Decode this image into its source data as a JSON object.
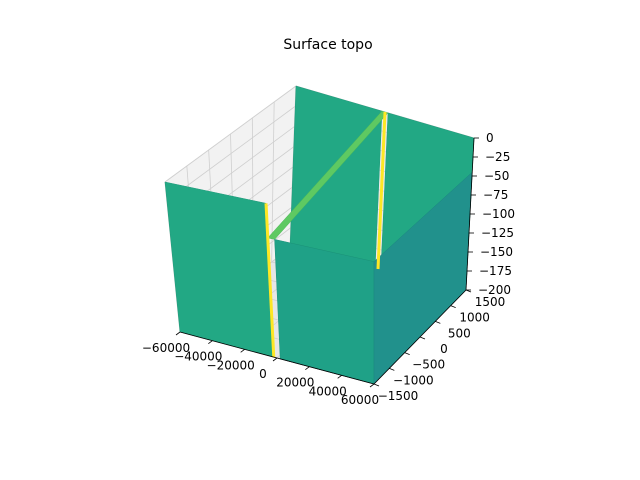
{
  "chart_data": {
    "type": "surface3d",
    "title": "Surface topo",
    "xlabel": "",
    "ylabel": "",
    "zlabel": "",
    "grid": true,
    "colormap": "viridis",
    "xlim": [
      -60000,
      60000
    ],
    "ylim": [
      -1500,
      1500
    ],
    "zlim": [
      -200,
      0
    ],
    "x_ticks": [
      -60000,
      -40000,
      -20000,
      0,
      20000,
      40000,
      60000
    ],
    "x_tick_labels": [
      "−60000",
      "−40000",
      "−20000",
      "0",
      "20000",
      "40000",
      "60000"
    ],
    "y_ticks": [
      -1500,
      -1000,
      -500,
      0,
      500,
      1000,
      1500
    ],
    "y_tick_labels": [
      "−1500",
      "−1000",
      "−500",
      "0",
      "500",
      "1000",
      "1500"
    ],
    "z_ticks": [
      -200,
      -175,
      -150,
      -125,
      -100,
      -75,
      -50,
      -25,
      0
    ],
    "z_tick_labels": [
      "−200",
      "−175",
      "−150",
      "−125",
      "−100",
      "−75",
      "−50",
      "−25",
      "0"
    ],
    "surface": {
      "description_values": "depth profile along x; constant along y",
      "x": [
        -60000,
        -40000,
        -20000,
        -2000,
        0,
        2000,
        20000,
        40000,
        60000
      ],
      "z_back_wall": [
        -45,
        -45,
        -45,
        -45,
        0,
        -45,
        -45,
        -45,
        -45
      ],
      "z_floor": -200,
      "colors": {
        "wall": "#22a884",
        "crest": "#fde725",
        "slope": "#5ec962",
        "floor": "#440154"
      }
    }
  }
}
